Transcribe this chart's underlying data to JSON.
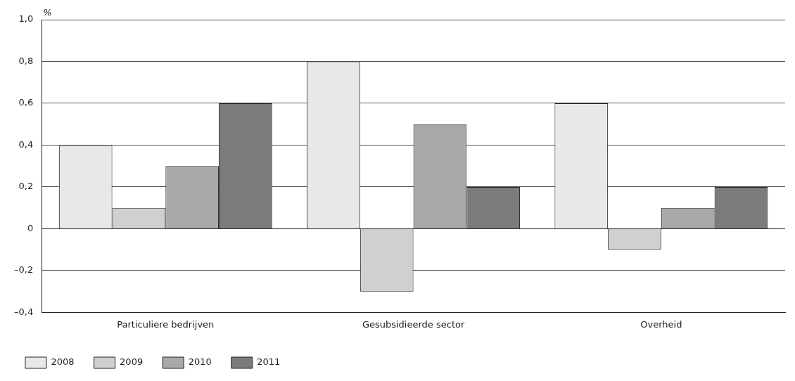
{
  "chart_data": {
    "type": "bar",
    "ylabel": "%",
    "categories": [
      "Particuliere bedrijven",
      "Gesubsidieerde sector",
      "Overheid"
    ],
    "series": [
      {
        "name": "2008",
        "color": "#e8e8e8",
        "values": [
          0.4,
          0.8,
          0.6
        ]
      },
      {
        "name": "2009",
        "color": "#d0d0d0",
        "values": [
          0.1,
          -0.3,
          -0.1
        ]
      },
      {
        "name": "2010",
        "color": "#a9a9a9",
        "values": [
          0.3,
          0.5,
          0.1
        ]
      },
      {
        "name": "2011",
        "color": "#7b7b7b",
        "values": [
          0.6,
          0.2,
          0.2
        ]
      }
    ],
    "ylim": [
      -0.4,
      1.0
    ],
    "yticks": [
      {
        "value": -0.4,
        "label": "–0,4"
      },
      {
        "value": -0.2,
        "label": "–0,2"
      },
      0,
      {
        "value": 0.2,
        "label": "0,2"
      },
      {
        "value": 0.4,
        "label": "0,4"
      },
      {
        "value": 0.6,
        "label": "0,6"
      },
      {
        "value": 0.8,
        "label": "0,8"
      },
      {
        "value": 1.0,
        "label": "1,0"
      }
    ],
    "grid": "y",
    "legend": "bottom left"
  }
}
